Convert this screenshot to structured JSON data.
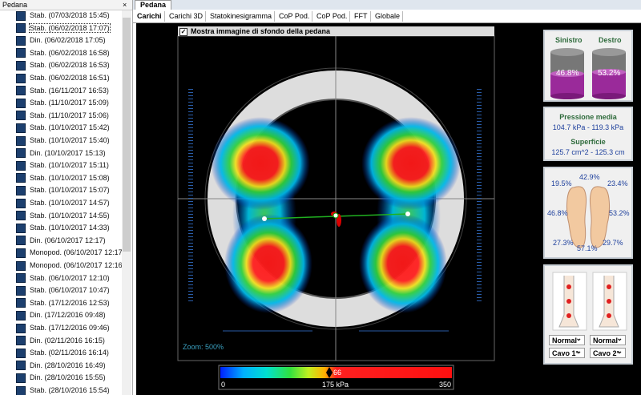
{
  "sidebar": {
    "title": "Pedana",
    "items": [
      "Stab. (07/03/2018 15:45)",
      "Stab. (06/02/2018 17:07)",
      "Din. (06/02/2018 17:05)",
      "Stab. (06/02/2018 16:58)",
      "Stab. (06/02/2018 16:53)",
      "Stab. (06/02/2018 16:51)",
      "Stab. (16/11/2017 16:53)",
      "Stab. (11/10/2017 15:09)",
      "Stab. (11/10/2017 15:06)",
      "Stab. (10/10/2017 15:42)",
      "Stab. (10/10/2017 15:40)",
      "Din. (10/10/2017 15:13)",
      "Stab. (10/10/2017 15:11)",
      "Stab. (10/10/2017 15:08)",
      "Stab. (10/10/2017 15:07)",
      "Stab. (10/10/2017 14:57)",
      "Stab. (10/10/2017 14:55)",
      "Stab. (10/10/2017 14:33)",
      "Din. (06/10/2017 12:17)",
      "Monopod. (06/10/2017 12:17)",
      "Monopod. (06/10/2017 12:16)",
      "Stab. (06/10/2017 12:10)",
      "Stab. (06/10/2017 10:47)",
      "Stab. (17/12/2016 12:53)",
      "Din. (17/12/2016 09:48)",
      "Stab. (17/12/2016 09:46)",
      "Din. (02/11/2016 16:15)",
      "Stab. (02/11/2016 16:14)",
      "Din. (28/10/2016 16:49)",
      "Din. (28/10/2016 15:55)",
      "Stab. (28/10/2016 15:54)"
    ]
  },
  "window_tab": "Pedana",
  "tabs": [
    "Carichi",
    "Carichi 3D",
    "Statokinesigramma",
    "CoP Pod.",
    "CoP Pod.",
    "FFT",
    "Globale"
  ],
  "checkbox_label": "Mostra immagine di sfondo della pedana",
  "zoom_label": "Zoom: 500%",
  "colorbar": {
    "min_label": "0",
    "mid_label": "175 kPa",
    "max_label": "350",
    "marker_label": "66"
  },
  "balance": {
    "left_title": "Sinistro",
    "right_title": "Destro",
    "left_value": "46.8%",
    "right_value": "53.2%"
  },
  "pressure": {
    "title": "Pressione media",
    "value": "104.7 kPa - 119.3 kPa",
    "surface_title": "Superficie",
    "surface_value": "125.7 cm^2 - 125.3 cm"
  },
  "distribution": {
    "center_fore": "42.9%",
    "left_fore": "19.5%",
    "right_fore": "23.4%",
    "left_total": "46.8%",
    "right_total": "53.2%",
    "left_rear": "27.3%",
    "center_rear": "57.1%",
    "right_rear": "29.7%"
  },
  "foot_type": {
    "left_arch": "Normal",
    "right_arch": "Normal",
    "left_cavo": "Cavo 1°",
    "right_cavo": "Cavo 2°"
  }
}
